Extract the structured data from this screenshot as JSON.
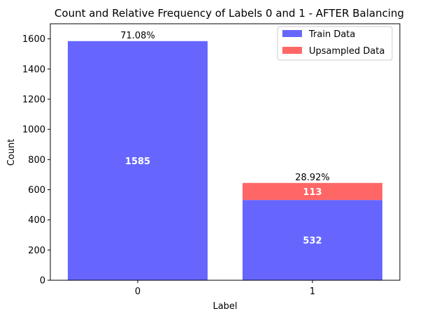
{
  "chart_data": {
    "type": "bar",
    "stacked": true,
    "title": "Count and Relative Frequency of Labels 0 and 1 - AFTER Balancing",
    "xlabel": "Label",
    "ylabel": "Count",
    "categories": [
      "0",
      "1"
    ],
    "series": [
      {
        "name": "Train Data",
        "values": [
          1585,
          532
        ],
        "color": "#6666ff"
      },
      {
        "name": "Upsampled Data",
        "values": [
          0,
          113
        ],
        "color": "#ff6666"
      }
    ],
    "data_labels": {
      "series_0": [
        "1585",
        "532"
      ],
      "series_1": [
        "",
        "113"
      ]
    },
    "percentages": [
      "71.08%",
      "28.92%"
    ],
    "ylim": [
      0,
      1700
    ],
    "yticks": [
      0,
      200,
      400,
      600,
      800,
      1000,
      1200,
      1400,
      1600
    ],
    "grid": false,
    "legend": {
      "position": "top-right",
      "entries": [
        "Train Data",
        "Upsampled Data"
      ]
    }
  }
}
